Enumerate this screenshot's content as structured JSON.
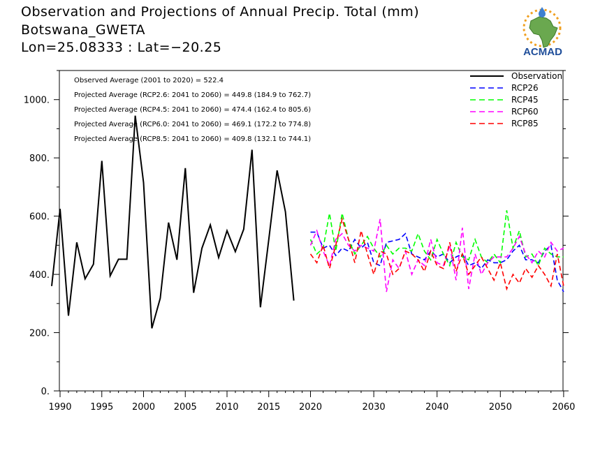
{
  "header": {
    "title": "Observation and Projections of Annual Precip. Total (mm)",
    "station": "Botswana_GWETA",
    "coords": "Lon=25.08333 : Lat=−20.25"
  },
  "logo": {
    "text": "ACMAD",
    "icon": "africa-map-logo",
    "colors": {
      "africa": "#6aa84f",
      "text": "#1f4e9a",
      "sun": "#f0a020",
      "drop": "#3d7fd0"
    }
  },
  "chart_data": {
    "type": "line",
    "xlim": [
      1989,
      2060
    ],
    "ylim": [
      0,
      1100
    ],
    "x_ticks": [
      1990,
      1995,
      2000,
      2005,
      2010,
      2015,
      2020,
      2030,
      2040,
      2050,
      2060
    ],
    "y_ticks": [
      0,
      200,
      400,
      600,
      800,
      1000
    ],
    "y_tick_labels": [
      "0.",
      "200.",
      "400.",
      "600.",
      "800.",
      "1000."
    ],
    "grid": false,
    "legend_position": "top-right",
    "annotations": [
      "Observed Average (2001 to 2020) = 522.4",
      "Projected Average (RCP2.6: 2041 to 2060) = 449.8 (184.9 to 762.7)",
      "Projected Average (RCP4.5: 2041 to 2060) = 474.4 (162.4 to 805.6)",
      "Projected Average (RCP6.0: 2041 to 2060) = 469.1 (172.2 to 774.8)",
      "Projected Average (RCP8.5: 2041 to 2060) = 409.8 (132.1 to 744.1)"
    ],
    "series": [
      {
        "name": "Observation",
        "color": "#000000",
        "dash": "solid",
        "x_start": 1989,
        "values": [
          360,
          625,
          258,
          510,
          385,
          435,
          790,
          395,
          452,
          452,
          945,
          715,
          215,
          318,
          578,
          450,
          765,
          337,
          490,
          570,
          458,
          550,
          478,
          555,
          828,
          287,
          520,
          757,
          615,
          310
        ]
      },
      {
        "name": "RCP26",
        "color": "#0000ff",
        "dash": "dashed",
        "x_start": 2020,
        "values": [
          545,
          545,
          490,
          500,
          465,
          490,
          480,
          520,
          490,
          510,
          440,
          430,
          510,
          515,
          520,
          540,
          470,
          460,
          450,
          480,
          460,
          470,
          440,
          460,
          470,
          430,
          440,
          420,
          450,
          440,
          440,
          450,
          480,
          500,
          450,
          450,
          440,
          480,
          500,
          380,
          340
        ]
      },
      {
        "name": "RCP45",
        "color": "#00ff00",
        "dash": "dashed",
        "x_start": 2020,
        "values": [
          520,
          470,
          490,
          610,
          480,
          610,
          520,
          470,
          500,
          530,
          490,
          460,
          500,
          470,
          490,
          490,
          480,
          540,
          480,
          450,
          520,
          470,
          430,
          510,
          460,
          450,
          520,
          460,
          440,
          470,
          440,
          620,
          490,
          550,
          460,
          470,
          430,
          490,
          470,
          460,
          460
        ]
      },
      {
        "name": "RCP60",
        "color": "#ff00ff",
        "dash": "dashed",
        "x_start": 2020,
        "values": [
          500,
          550,
          480,
          430,
          520,
          540,
          500,
          480,
          500,
          490,
          480,
          590,
          340,
          450,
          420,
          480,
          400,
          450,
          430,
          520,
          440,
          430,
          500,
          380,
          560,
          350,
          470,
          400,
          440,
          460,
          460,
          460,
          490,
          530,
          470,
          440,
          480,
          460,
          510,
          480,
          490
        ]
      },
      {
        "name": "RCP85",
        "color": "#ff0000",
        "dash": "dashed",
        "x_start": 2020,
        "values": [
          470,
          440,
          500,
          420,
          500,
          590,
          520,
          440,
          550,
          470,
          400,
          480,
          470,
          400,
          420,
          480,
          470,
          450,
          410,
          480,
          430,
          420,
          510,
          410,
          470,
          400,
          430,
          460,
          420,
          380,
          440,
          350,
          400,
          370,
          420,
          390,
          430,
          400,
          360,
          470,
          360
        ]
      }
    ]
  }
}
